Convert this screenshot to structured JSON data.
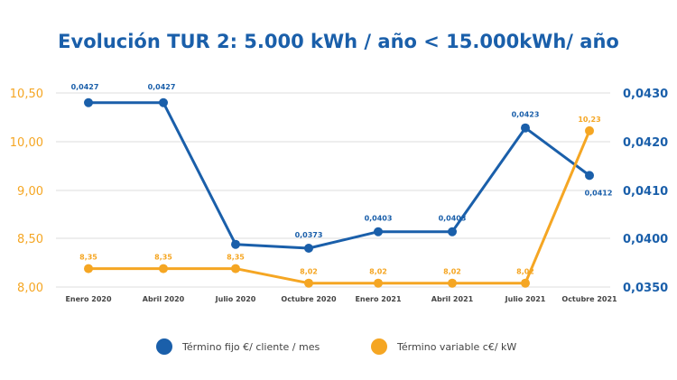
{
  "chart_data": {
    "type": "line",
    "title": "Evolución TUR 2: 5.000 kWh / año < 15.000kWh/ año",
    "categories": [
      "Enero 2020",
      "Abril 2020",
      "Julio 2020",
      "Octubre 2020",
      "Enero 2021",
      "Abril 2021",
      "Julio 2021",
      "Octubre 2021"
    ],
    "y_left": {
      "ticks": [
        "8,00",
        "8,50",
        "9,00",
        "10,00",
        "10,50"
      ],
      "ylim": [
        8.0,
        10.5
      ],
      "color": "#f5a623"
    },
    "y_right": {
      "ticks": [
        "0,0350",
        "0,0400",
        "0,0410",
        "0,0420",
        "0,0430"
      ],
      "ylim": [
        0.035,
        0.043
      ],
      "color": "#1a5faa"
    },
    "series": [
      {
        "name": "Término fijo €/ cliente / mes",
        "axis": "right",
        "color": "#1a5faa",
        "labels": [
          "0,0427",
          "0,0427",
          "",
          "0,0373",
          "0,0403",
          "0,0403",
          "0,0423",
          "0,0412"
        ],
        "level_fraction": [
          0.95,
          0.95,
          0.22,
          0.2,
          0.285,
          0.285,
          0.82,
          0.575
        ]
      },
      {
        "name": "Término variable c€/ kW",
        "axis": "left",
        "color": "#f5a623",
        "labels": [
          "8,35",
          "8,35",
          "8,35",
          "8,02",
          "8,02",
          "8,02",
          "8,02",
          "10,23"
        ],
        "level_fraction": [
          0.095,
          0.095,
          0.095,
          0.02,
          0.02,
          0.02,
          0.02,
          0.805
        ]
      }
    ],
    "grid": true,
    "legend": "bottom"
  },
  "colors": {
    "title": "#1a5faa",
    "grid": "#dddddd"
  }
}
